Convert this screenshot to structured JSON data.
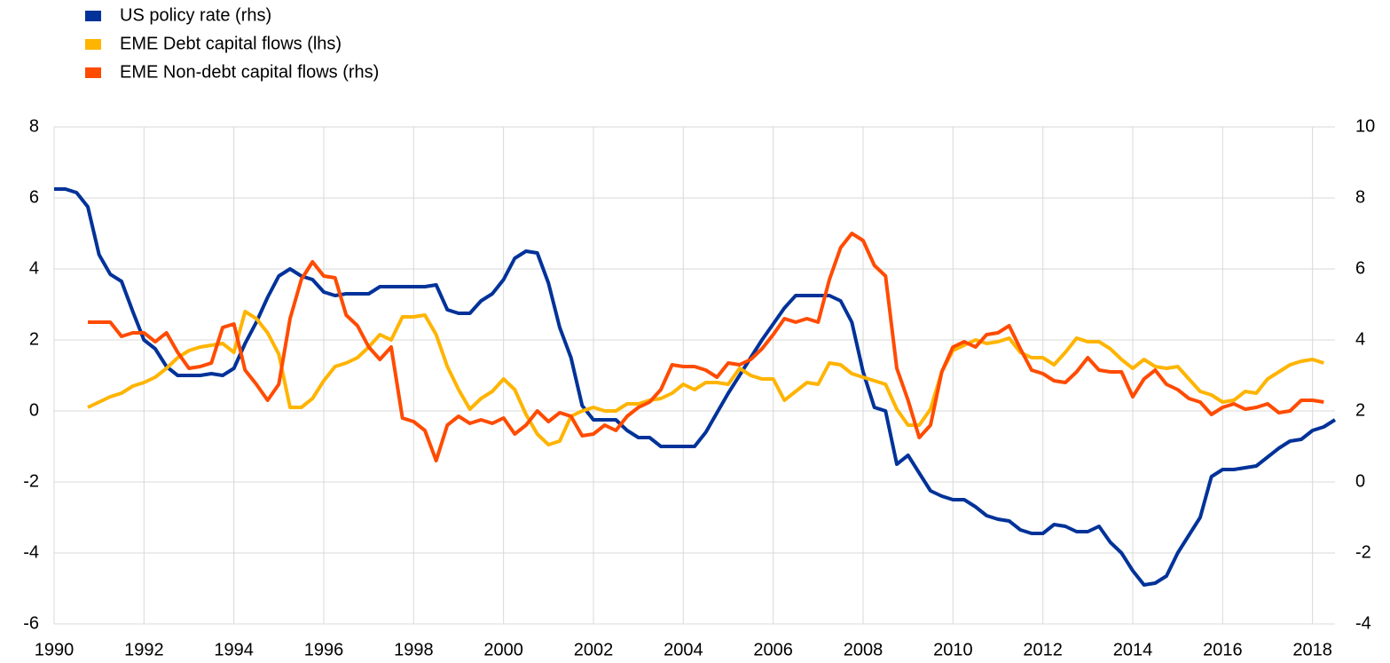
{
  "chart_data": {
    "type": "line",
    "x": [
      1990,
      1990.25,
      1990.5,
      1990.75,
      1991,
      1991.25,
      1991.5,
      1991.75,
      1992,
      1992.25,
      1992.5,
      1992.75,
      1993,
      1993.25,
      1993.5,
      1993.75,
      1994,
      1994.25,
      1994.5,
      1994.75,
      1995,
      1995.25,
      1995.5,
      1995.75,
      1996,
      1996.25,
      1996.5,
      1996.75,
      1997,
      1997.25,
      1997.5,
      1997.75,
      1998,
      1998.25,
      1998.5,
      1998.75,
      1999,
      1999.25,
      1999.5,
      1999.75,
      2000,
      2000.25,
      2000.5,
      2000.75,
      2001,
      2001.25,
      2001.5,
      2001.75,
      2002,
      2002.25,
      2002.5,
      2002.75,
      2003,
      2003.25,
      2003.5,
      2003.75,
      2004,
      2004.25,
      2004.5,
      2004.75,
      2005,
      2005.25,
      2005.5,
      2005.75,
      2006,
      2006.25,
      2006.5,
      2006.75,
      2007,
      2007.25,
      2007.5,
      2007.75,
      2008,
      2008.25,
      2008.5,
      2008.75,
      2009,
      2009.25,
      2009.5,
      2009.75,
      2010,
      2010.25,
      2010.5,
      2010.75,
      2011,
      2011.25,
      2011.5,
      2011.75,
      2012,
      2012.25,
      2012.5,
      2012.75,
      2013,
      2013.25,
      2013.5,
      2013.75,
      2014,
      2014.25,
      2014.5,
      2014.75,
      2015,
      2015.25,
      2015.5,
      2015.75,
      2016,
      2016.25,
      2016.5,
      2016.75,
      2017,
      2017.25,
      2017.5,
      2017.75,
      2018,
      2018.25,
      2018.5
    ],
    "series": [
      {
        "name": "US policy rate (rhs)",
        "color": "#003299",
        "axis": "y2",
        "values": [
          8.25,
          8.25,
          8.15,
          7.75,
          6.4,
          5.85,
          5.65,
          4.8,
          4.0,
          3.75,
          3.25,
          3.0,
          3.0,
          3.0,
          3.05,
          3.0,
          3.2,
          3.9,
          4.5,
          5.2,
          5.8,
          6.0,
          5.8,
          5.7,
          5.35,
          5.25,
          5.3,
          5.3,
          5.3,
          5.5,
          5.5,
          5.5,
          5.5,
          5.5,
          5.55,
          4.85,
          4.75,
          4.75,
          5.1,
          5.3,
          5.7,
          6.3,
          6.5,
          6.45,
          5.6,
          4.35,
          3.5,
          2.15,
          1.75,
          1.75,
          1.75,
          1.45,
          1.25,
          1.25,
          1.0,
          1.0,
          1.0,
          1.0,
          1.4,
          1.95,
          2.5,
          3.0,
          3.5,
          4.0,
          4.45,
          4.9,
          5.25,
          5.25,
          5.25,
          5.25,
          5.1,
          4.5,
          3.1,
          2.1,
          2.0,
          0.5,
          0.75,
          0.25,
          -0.25,
          -0.4,
          -0.5,
          -0.5,
          -0.7,
          -0.95,
          -1.05,
          -1.1,
          -1.35,
          -1.45,
          -1.45,
          -1.2,
          -1.25,
          -1.4,
          -1.4,
          -1.25,
          -1.7,
          -2.0,
          -2.5,
          -2.9,
          -2.85,
          -2.65,
          -2.0,
          -1.5,
          -1.0,
          0.15,
          0.35,
          0.35,
          0.4,
          0.45,
          0.7,
          0.95,
          1.15,
          1.2,
          1.45,
          1.55,
          1.75
        ]
      },
      {
        "name": "EME Debt capital flows (lhs)",
        "color": "#ffb400",
        "values": [
          null,
          null,
          null,
          0.1,
          0.25,
          0.4,
          0.5,
          0.7,
          0.8,
          0.95,
          1.2,
          1.5,
          1.7,
          1.8,
          1.85,
          1.9,
          1.65,
          2.8,
          2.6,
          2.2,
          1.6,
          0.1,
          0.1,
          0.35,
          0.85,
          1.25,
          1.35,
          1.5,
          1.8,
          2.15,
          2.0,
          2.65,
          2.65,
          2.7,
          2.15,
          1.25,
          0.6,
          0.05,
          0.35,
          0.55,
          0.9,
          0.6,
          -0.1,
          -0.65,
          -0.95,
          -0.85,
          -0.15,
          0.0,
          0.1,
          0.0,
          0.0,
          0.2,
          0.2,
          0.3,
          0.35,
          0.5,
          0.75,
          0.6,
          0.8,
          0.8,
          0.75,
          1.2,
          1.0,
          0.9,
          0.9,
          0.3,
          0.55,
          0.8,
          0.75,
          1.35,
          1.3,
          1.05,
          0.95,
          0.85,
          0.75,
          0.05,
          -0.4,
          -0.4,
          0.05,
          1.1,
          1.7,
          1.85,
          2.0,
          1.9,
          1.95,
          2.05,
          1.65,
          1.5,
          1.5,
          1.3,
          1.65,
          2.05,
          1.95,
          1.95,
          1.75,
          1.45,
          1.2,
          1.45,
          1.25,
          1.2,
          1.25,
          0.9,
          0.55,
          0.45,
          0.25,
          0.3,
          0.55,
          0.5,
          0.9,
          1.1,
          1.3,
          1.4,
          1.45,
          1.35,
          null
        ]
      },
      {
        "name": "EME Non-debt capital flows (rhs)",
        "color": "#ff4b00",
        "axis": "y2",
        "values": [
          null,
          null,
          null,
          4.5,
          4.5,
          4.5,
          4.1,
          4.2,
          4.2,
          3.95,
          4.2,
          3.65,
          3.2,
          3.25,
          3.35,
          4.35,
          4.45,
          3.15,
          2.75,
          2.3,
          2.75,
          4.6,
          5.7,
          6.2,
          5.8,
          5.75,
          4.7,
          4.4,
          3.8,
          3.45,
          3.8,
          1.8,
          1.7,
          1.45,
          0.6,
          1.6,
          1.85,
          1.65,
          1.75,
          1.65,
          1.8,
          1.35,
          1.6,
          2.0,
          1.7,
          1.95,
          1.85,
          1.3,
          1.35,
          1.6,
          1.45,
          1.85,
          2.1,
          2.25,
          2.6,
          3.3,
          3.25,
          3.25,
          3.15,
          2.95,
          3.35,
          3.3,
          3.45,
          3.75,
          4.15,
          4.6,
          4.5,
          4.6,
          4.5,
          5.7,
          6.6,
          7.0,
          6.8,
          6.1,
          5.8,
          3.2,
          2.3,
          1.25,
          1.6,
          3.1,
          3.8,
          3.95,
          3.8,
          4.15,
          4.2,
          4.4,
          3.75,
          3.15,
          3.05,
          2.85,
          2.8,
          3.1,
          3.5,
          3.15,
          3.1,
          3.1,
          2.4,
          2.9,
          3.15,
          2.75,
          2.6,
          2.35,
          2.25,
          1.9,
          2.1,
          2.2,
          2.05,
          2.1,
          2.2,
          1.95,
          2.0,
          2.3,
          2.3,
          2.25,
          null
        ]
      }
    ],
    "xlim": [
      1990,
      2018.5
    ],
    "xticks": [
      1990,
      1992,
      1994,
      1996,
      1998,
      2000,
      2002,
      2004,
      2006,
      2008,
      2010,
      2012,
      2014,
      2016,
      2018
    ],
    "ylim": [
      -6,
      8
    ],
    "yticks": [
      -6,
      -4,
      -2,
      0,
      2,
      4,
      6,
      8
    ],
    "y2lim": [
      -4,
      10
    ],
    "y2ticks": [
      -4,
      -2,
      0,
      2,
      4,
      6,
      8,
      10
    ],
    "grid": true
  }
}
